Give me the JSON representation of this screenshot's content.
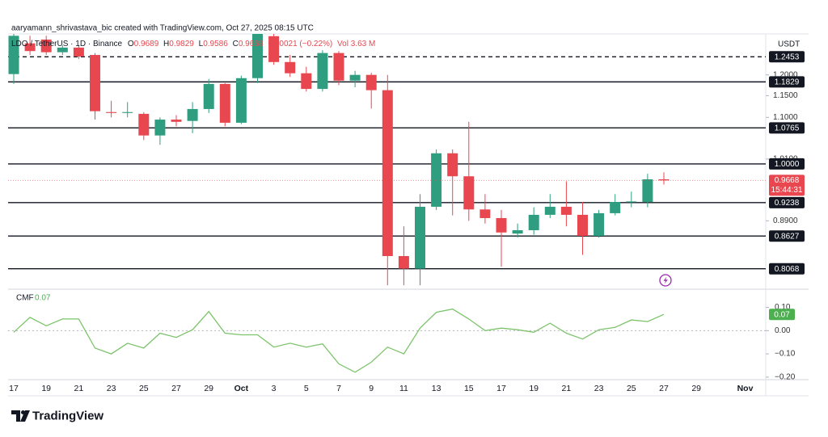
{
  "header": {
    "credit": "aaryamann_shrivastava_bic created with TradingView.com, Oct 27, 2025 08:15 UTC",
    "symbol": "LDO / TetherUS · 1D · Binance",
    "ohlc_labels": [
      "O",
      "H",
      "L",
      "C"
    ],
    "change": "−0.0021 (−0.22%)",
    "volume": "Vol 3.63 M"
  },
  "chart_data": [
    {
      "type": "candlestick",
      "y_axis_unit": "USDT",
      "log_scale": true,
      "up_color": "#2f9e80",
      "down_color": "#e8474f",
      "categories": [
        "17",
        null,
        "19",
        null,
        "21",
        null,
        "23",
        null,
        "25",
        null,
        "27",
        null,
        "29",
        null,
        "Oct",
        null,
        "3",
        null,
        "5",
        null,
        "7",
        null,
        "9",
        null,
        "11",
        null,
        "13",
        null,
        "15",
        null,
        "17",
        null,
        "19",
        null,
        "21",
        null,
        "23",
        null,
        "25",
        null,
        "27",
        null,
        "29",
        null,
        null,
        "Nov"
      ],
      "open": [
        1.202,
        1.28,
        1.29,
        1.257,
        1.269,
        1.25,
        1.112,
        1.11,
        1.108,
        1.06,
        1.095,
        1.092,
        1.119,
        1.178,
        1.088,
        1.192,
        1.299,
        1.232,
        1.204,
        1.166,
        1.255,
        1.186,
        1.2,
        1.163,
        0.828,
        0.807,
        0.916,
        1.022,
        0.975,
        0.911,
        0.895,
        0.867,
        0.873,
        0.901,
        0.916,
        0.901,
        0.863,
        0.904,
        0.925,
        0.925,
        0.9689,
        null,
        null,
        null,
        null,
        null
      ],
      "high": [
        1.31,
        1.3,
        1.3,
        1.275,
        1.275,
        1.255,
        1.138,
        1.135,
        1.112,
        1.1,
        1.105,
        1.135,
        1.19,
        1.18,
        1.198,
        1.32,
        1.31,
        1.25,
        1.22,
        1.262,
        1.26,
        1.21,
        1.205,
        1.2,
        0.88,
        0.94,
        1.03,
        1.03,
        1.09,
        0.94,
        0.91,
        0.885,
        0.915,
        0.94,
        0.965,
        0.925,
        0.91,
        0.94,
        0.945,
        0.98,
        0.9829,
        null,
        null,
        null,
        null,
        null
      ],
      "low": [
        1.178,
        1.25,
        1.25,
        1.25,
        1.24,
        1.095,
        1.1,
        1.1,
        1.05,
        1.04,
        1.08,
        1.065,
        1.11,
        1.08,
        1.085,
        1.18,
        1.225,
        1.195,
        1.16,
        1.16,
        1.175,
        1.17,
        1.12,
        0.78,
        0.78,
        0.78,
        0.91,
        0.9,
        0.89,
        0.885,
        0.81,
        0.86,
        0.865,
        0.895,
        0.88,
        0.83,
        0.86,
        0.9,
        0.915,
        0.915,
        0.9586,
        null,
        null,
        null,
        null,
        null
      ],
      "close": [
        1.3,
        1.26,
        1.257,
        1.269,
        1.246,
        1.114,
        1.11,
        1.112,
        1.06,
        1.095,
        1.09,
        1.119,
        1.178,
        1.088,
        1.192,
        1.305,
        1.232,
        1.204,
        1.166,
        1.255,
        1.186,
        1.2,
        1.163,
        0.828,
        0.807,
        0.916,
        1.022,
        0.975,
        0.911,
        0.895,
        0.869,
        0.873,
        0.901,
        0.916,
        0.901,
        0.863,
        0.904,
        0.925,
        0.926,
        0.969,
        0.9668,
        null,
        null,
        null,
        null,
        null
      ],
      "ylim": [
        0.775,
        1.305
      ],
      "yticks": [
        {
          "value": 1.2,
          "label": "1.2000"
        },
        {
          "value": 1.15,
          "label": "1.1500"
        },
        {
          "value": 1.1,
          "label": "1.1000"
        },
        {
          "value": 1.01,
          "label": "1.0100"
        },
        {
          "value": 0.89,
          "label": "0.8900"
        }
      ],
      "levels": [
        {
          "value": 1.2453,
          "dashed": true
        },
        {
          "value": 1.1829
        },
        {
          "value": 1.0765
        },
        {
          "value": 1,
          "label": "1.0000"
        },
        {
          "value": 0.9238
        },
        {
          "value": 0.8627
        },
        {
          "value": 0.8068
        }
      ],
      "countdown": "15:44:31"
    },
    {
      "type": "line",
      "name": "CMF",
      "color": "#7cc46a",
      "label_color": "#4caf50",
      "values": [
        -0.007,
        0.057,
        0.021,
        0.05,
        0.05,
        -0.075,
        -0.1,
        -0.054,
        -0.075,
        -0.011,
        -0.029,
        0.004,
        0.082,
        -0.011,
        -0.018,
        -0.018,
        -0.071,
        -0.054,
        -0.071,
        -0.057,
        -0.143,
        -0.179,
        -0.136,
        -0.071,
        -0.1,
        0.011,
        0.079,
        0.093,
        0.05,
        0,
        0.011,
        0.004,
        -0.007,
        0.032,
        -0.011,
        -0.036,
        0.004,
        0.014,
        0.046,
        0.039,
        0.07,
        null,
        null,
        null,
        null,
        null
      ],
      "ylim": [
        -0.211,
        0.175
      ],
      "yticks": [
        {
          "value": 0.1,
          "label": "0.10"
        },
        {
          "value": 0,
          "label": "0.00"
        },
        {
          "value": -0.1,
          "label": "−0.10"
        },
        {
          "value": -0.2,
          "label": "−0.20"
        }
      ],
      "zero_line": true
    }
  ],
  "brand": "TradingView"
}
